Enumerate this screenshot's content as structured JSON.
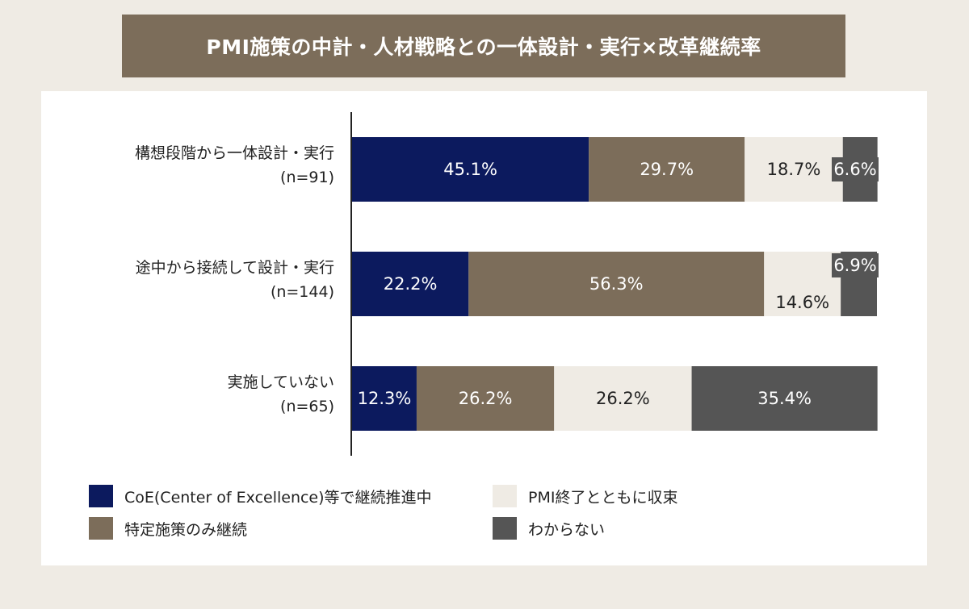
{
  "chart_data": {
    "type": "bar",
    "orientation": "horizontal",
    "stacked": true,
    "title": "PMI施策の中計・人材戦略との一体設計・実行×改革継続率",
    "categories": [
      {
        "name": "構想段階から一体設計・実行",
        "n": "(n=91)"
      },
      {
        "name": "途中から接続して設計・実行",
        "n": "(n=144)"
      },
      {
        "name": "実施していない",
        "n": "(n=65)"
      }
    ],
    "series": [
      {
        "name": "CoE(Center of Excellence)等で継続推進中",
        "color": "#0c1a5e",
        "text_color": "#ffffff",
        "values": [
          45.1,
          22.2,
          12.3
        ],
        "labels": [
          "45.1%",
          "22.2%",
          "12.3%"
        ]
      },
      {
        "name": "特定施策のみ継続",
        "color": "#7c6d5a",
        "text_color": "#ffffff",
        "values": [
          29.7,
          56.3,
          26.2
        ],
        "labels": [
          "29.7%",
          "56.3%",
          "26.2%"
        ]
      },
      {
        "name": "PMI終了とともに収束",
        "color": "#efebe4",
        "text_color": "#222222",
        "values": [
          18.7,
          14.6,
          26.2
        ],
        "labels": [
          "18.7%",
          "14.6%",
          "26.2%"
        ]
      },
      {
        "name": "わからない",
        "color": "#555555",
        "text_color": "#ffffff",
        "values": [
          6.6,
          6.9,
          35.4
        ],
        "labels": [
          "6.6%",
          "6.9%",
          "35.4%"
        ]
      }
    ],
    "xlim": [
      0,
      100
    ]
  }
}
